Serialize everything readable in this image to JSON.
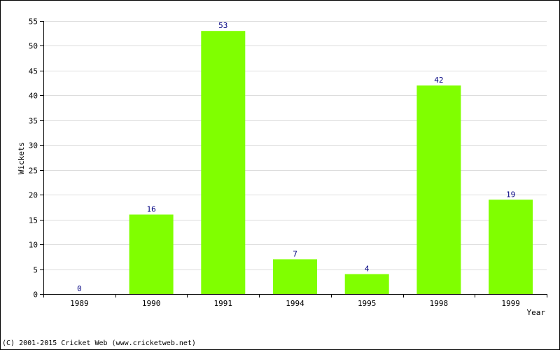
{
  "chart_data": {
    "type": "bar",
    "categories": [
      "1989",
      "1990",
      "1991",
      "1994",
      "1995",
      "1998",
      "1999"
    ],
    "values": [
      0,
      16,
      53,
      7,
      4,
      42,
      19
    ],
    "data_labels": [
      "0",
      "16",
      "53",
      "7",
      "4",
      "42",
      "19"
    ],
    "xlabel": "Year",
    "ylabel": "Wickets",
    "ylim": [
      0,
      55
    ],
    "yticks": [
      0,
      5,
      10,
      15,
      20,
      25,
      30,
      35,
      40,
      45,
      50,
      55
    ],
    "grid": true,
    "bar_color": "#80ff00",
    "label_color": "#000080",
    "grid_color": "#dddddd"
  },
  "footer": {
    "copyright": "(C) 2001-2015 Cricket Web (www.cricketweb.net)"
  }
}
